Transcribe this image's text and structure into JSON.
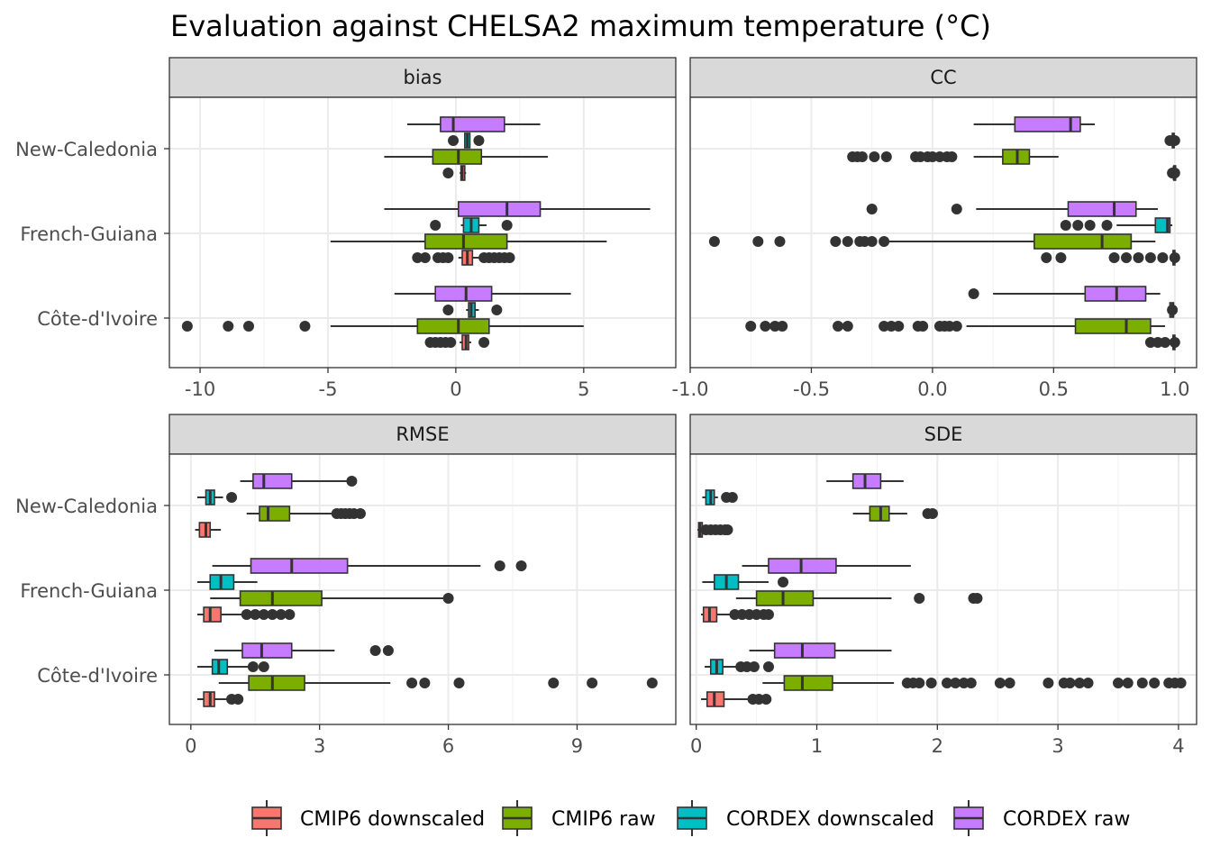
{
  "chart_data": {
    "type": "boxplot",
    "title": "Evaluation against CHELSA2 maximum temperature (°C)",
    "legend": {
      "placement": "bottom",
      "entries": [
        {
          "key": "cmip6_downscaled",
          "label": "CMIP6 downscaled",
          "color": "#F8766D"
        },
        {
          "key": "cmip6_raw",
          "label": "CMIP6 raw",
          "color": "#7CAE00"
        },
        {
          "key": "cordex_downscaled",
          "label": "CORDEX downscaled",
          "color": "#00BFC4"
        },
        {
          "key": "cordex_raw",
          "label": "CORDEX raw",
          "color": "#C77CFF"
        }
      ]
    },
    "regions": [
      "New-Caledonia",
      "French-Guiana",
      "Côte-d'Ivoire"
    ],
    "facets": [
      {
        "name": "bias",
        "xlim": [
          -11.2,
          8.6
        ],
        "ticks": [
          -10,
          -5,
          0,
          5
        ],
        "tick_labels": [
          "-10",
          "-5",
          "0",
          "5"
        ],
        "boxes": [
          {
            "region": "New-Caledonia",
            "series": "cordex_raw",
            "wlo": -1.9,
            "q1": -0.6,
            "med": -0.1,
            "q3": 1.9,
            "whi": 3.3,
            "outliers": []
          },
          {
            "region": "New-Caledonia",
            "series": "cordex_downscaled",
            "wlo": 0.35,
            "q1": 0.35,
            "med": 0.45,
            "q3": 0.55,
            "whi": 0.55,
            "outliers": [
              -0.1,
              0.9
            ]
          },
          {
            "region": "New-Caledonia",
            "series": "cmip6_raw",
            "wlo": -2.8,
            "q1": -0.9,
            "med": 0.1,
            "q3": 1.0,
            "whi": 3.6,
            "outliers": []
          },
          {
            "region": "New-Caledonia",
            "series": "cmip6_downscaled",
            "wlo": 0.15,
            "q1": 0.2,
            "med": 0.25,
            "q3": 0.35,
            "whi": 0.4,
            "outliers": [
              -0.3
            ]
          },
          {
            "region": "French-Guiana",
            "series": "cordex_raw",
            "wlo": -2.8,
            "q1": 0.1,
            "med": 2.0,
            "q3": 3.3,
            "whi": 7.6,
            "outliers": []
          },
          {
            "region": "French-Guiana",
            "series": "cordex_downscaled",
            "wlo": 0.2,
            "q1": 0.3,
            "med": 0.6,
            "q3": 0.9,
            "whi": 1.2,
            "outliers": [
              -0.8,
              2.0
            ]
          },
          {
            "region": "French-Guiana",
            "series": "cmip6_raw",
            "wlo": -4.9,
            "q1": -1.2,
            "med": 0.3,
            "q3": 2.0,
            "whi": 5.9,
            "outliers": []
          },
          {
            "region": "French-Guiana",
            "series": "cmip6_downscaled",
            "wlo": 0.1,
            "q1": 0.25,
            "med": 0.45,
            "q3": 0.65,
            "whi": 1.0,
            "outliers": [
              -1.5,
              -1.2,
              -0.7,
              -0.5,
              -0.3,
              1.1,
              1.3,
              1.5,
              1.7,
              1.9,
              2.1
            ]
          },
          {
            "region": "Côte-d'Ivoire",
            "series": "cordex_raw",
            "wlo": -2.4,
            "q1": -0.8,
            "med": 0.4,
            "q3": 1.4,
            "whi": 4.5,
            "outliers": []
          },
          {
            "region": "Côte-d'Ivoire",
            "series": "cordex_downscaled",
            "wlo": 0.4,
            "q1": 0.5,
            "med": 0.6,
            "q3": 0.75,
            "whi": 0.9,
            "outliers": [
              -0.3,
              1.6
            ]
          },
          {
            "region": "Côte-d'Ivoire",
            "series": "cmip6_raw",
            "wlo": -4.9,
            "q1": -1.5,
            "med": 0.1,
            "q3": 1.3,
            "whi": 5.0,
            "outliers": [
              -10.5,
              -8.9,
              -8.1,
              -5.9
            ]
          },
          {
            "region": "Côte-d'Ivoire",
            "series": "cmip6_downscaled",
            "wlo": 0.15,
            "q1": 0.25,
            "med": 0.4,
            "q3": 0.5,
            "whi": 0.6,
            "outliers": [
              -1.0,
              -0.8,
              -0.6,
              -0.4,
              -0.2,
              1.1
            ]
          }
        ]
      },
      {
        "name": "CC",
        "xlim": [
          -1.0,
          1.09
        ],
        "ticks": [
          -1.0,
          -0.5,
          0.0,
          0.5,
          1.0
        ],
        "tick_labels": [
          "-1.0",
          "-0.5",
          "0.0",
          "0.5",
          "1.0"
        ],
        "boxes": [
          {
            "region": "New-Caledonia",
            "series": "cordex_raw",
            "wlo": 0.17,
            "q1": 0.34,
            "med": 0.57,
            "q3": 0.61,
            "whi": 0.67,
            "outliers": []
          },
          {
            "region": "New-Caledonia",
            "series": "cordex_downscaled",
            "wlo": 0.985,
            "q1": 0.99,
            "med": 0.993,
            "q3": 0.996,
            "whi": 0.998,
            "outliers": [
              0.98,
              1.0
            ]
          },
          {
            "region": "New-Caledonia",
            "series": "cmip6_raw",
            "wlo": 0.17,
            "q1": 0.29,
            "med": 0.35,
            "q3": 0.4,
            "whi": 0.52,
            "outliers": [
              -0.33,
              -0.31,
              -0.29,
              -0.24,
              -0.19,
              -0.07,
              -0.05,
              -0.02,
              0.0,
              0.03,
              0.06,
              0.08
            ]
          },
          {
            "region": "New-Caledonia",
            "series": "cmip6_downscaled",
            "wlo": 0.994,
            "q1": 0.996,
            "med": 0.997,
            "q3": 0.998,
            "whi": 0.999,
            "outliers": [
              0.99,
              1.0
            ]
          },
          {
            "region": "French-Guiana",
            "series": "cordex_raw",
            "wlo": 0.18,
            "q1": 0.56,
            "med": 0.75,
            "q3": 0.84,
            "whi": 0.93,
            "outliers": [
              -0.25,
              0.1
            ]
          },
          {
            "region": "French-Guiana",
            "series": "cordex_downscaled",
            "wlo": 0.76,
            "q1": 0.92,
            "med": 0.97,
            "q3": 0.98,
            "whi": 0.99,
            "outliers": [
              0.55,
              0.6,
              0.65,
              0.72
            ]
          },
          {
            "region": "French-Guiana",
            "series": "cmip6_raw",
            "wlo": -0.2,
            "q1": 0.42,
            "med": 0.7,
            "q3": 0.82,
            "whi": 0.92,
            "outliers": [
              -0.9,
              -0.72,
              -0.63,
              -0.4,
              -0.35,
              -0.3,
              -0.28,
              -0.25,
              -0.2
            ]
          },
          {
            "region": "French-Guiana",
            "series": "cmip6_downscaled",
            "wlo": 0.99,
            "q1": 0.993,
            "med": 0.996,
            "q3": 0.998,
            "whi": 0.999,
            "outliers": [
              0.47,
              0.53,
              0.75,
              0.8,
              0.85,
              0.9,
              0.95,
              1.0
            ]
          },
          {
            "region": "Côte-d'Ivoire",
            "series": "cordex_raw",
            "wlo": 0.25,
            "q1": 0.63,
            "med": 0.76,
            "q3": 0.88,
            "whi": 0.94,
            "outliers": [
              0.17
            ]
          },
          {
            "region": "Côte-d'Ivoire",
            "series": "cordex_downscaled",
            "wlo": 0.97,
            "q1": 0.98,
            "med": 0.99,
            "q3": 0.995,
            "whi": 1.0,
            "outliers": [
              0.99
            ]
          },
          {
            "region": "Côte-d'Ivoire",
            "series": "cmip6_raw",
            "wlo": 0.14,
            "q1": 0.59,
            "med": 0.8,
            "q3": 0.9,
            "whi": 0.96,
            "outliers": [
              -0.75,
              -0.69,
              -0.65,
              -0.62,
              -0.39,
              -0.35,
              -0.2,
              -0.17,
              -0.14,
              -0.06,
              -0.04,
              0.03,
              0.05,
              0.07,
              0.1
            ]
          },
          {
            "region": "Côte-d'Ivoire",
            "series": "cmip6_downscaled",
            "wlo": 0.99,
            "q1": 0.993,
            "med": 0.996,
            "q3": 0.998,
            "whi": 0.999,
            "outliers": [
              0.9,
              0.93,
              0.96,
              1.0
            ]
          }
        ]
      },
      {
        "name": "RMSE",
        "xlim": [
          -0.5,
          11.3
        ],
        "ticks": [
          0,
          3,
          6,
          9
        ],
        "tick_labels": [
          "0",
          "3",
          "6",
          "9"
        ],
        "boxes": [
          {
            "region": "New-Caledonia",
            "series": "cordex_raw",
            "wlo": 1.15,
            "q1": 1.45,
            "med": 1.7,
            "q3": 2.35,
            "whi": 3.7,
            "outliers": [
              3.75
            ]
          },
          {
            "region": "New-Caledonia",
            "series": "cordex_downscaled",
            "wlo": 0.15,
            "q1": 0.35,
            "med": 0.45,
            "q3": 0.55,
            "whi": 0.75,
            "outliers": [
              0.95
            ]
          },
          {
            "region": "New-Caledonia",
            "series": "cmip6_raw",
            "wlo": 1.3,
            "q1": 1.6,
            "med": 1.8,
            "q3": 2.3,
            "whi": 3.3,
            "outliers": [
              3.4,
              3.5,
              3.6,
              3.7,
              3.8,
              3.95
            ]
          },
          {
            "region": "New-Caledonia",
            "series": "cmip6_downscaled",
            "wlo": 0.1,
            "q1": 0.2,
            "med": 0.35,
            "q3": 0.45,
            "whi": 0.7,
            "outliers": []
          },
          {
            "region": "French-Guiana",
            "series": "cordex_raw",
            "wlo": 0.5,
            "q1": 1.4,
            "med": 2.35,
            "q3": 3.65,
            "whi": 6.75,
            "outliers": [
              7.2,
              7.7
            ]
          },
          {
            "region": "French-Guiana",
            "series": "cordex_downscaled",
            "wlo": 0.15,
            "q1": 0.45,
            "med": 0.7,
            "q3": 1.0,
            "whi": 1.55,
            "outliers": []
          },
          {
            "region": "French-Guiana",
            "series": "cmip6_raw",
            "wlo": 0.45,
            "q1": 1.15,
            "med": 1.9,
            "q3": 3.05,
            "whi": 5.9,
            "outliers": [
              6.0
            ]
          },
          {
            "region": "French-Guiana",
            "series": "cmip6_downscaled",
            "wlo": 0.15,
            "q1": 0.3,
            "med": 0.45,
            "q3": 0.7,
            "whi": 1.2,
            "outliers": [
              1.3,
              1.5,
              1.7,
              1.9,
              2.1,
              2.3
            ]
          },
          {
            "region": "Côte-d'Ivoire",
            "series": "cordex_raw",
            "wlo": 0.55,
            "q1": 1.2,
            "med": 1.65,
            "q3": 2.35,
            "whi": 3.35,
            "outliers": [
              4.3,
              4.6
            ]
          },
          {
            "region": "Côte-d'Ivoire",
            "series": "cordex_downscaled",
            "wlo": 0.15,
            "q1": 0.5,
            "med": 0.65,
            "q3": 0.85,
            "whi": 1.35,
            "outliers": [
              1.45,
              1.7
            ]
          },
          {
            "region": "Côte-d'Ivoire",
            "series": "cmip6_raw",
            "wlo": 0.65,
            "q1": 1.35,
            "med": 1.9,
            "q3": 2.65,
            "whi": 4.65,
            "outliers": [
              5.15,
              5.45,
              6.25,
              8.45,
              9.35,
              10.75
            ]
          },
          {
            "region": "Côte-d'Ivoire",
            "series": "cmip6_downscaled",
            "wlo": 0.15,
            "q1": 0.3,
            "med": 0.45,
            "q3": 0.55,
            "whi": 0.9,
            "outliers": [
              0.95,
              1.1
            ]
          }
        ]
      },
      {
        "name": "SDE",
        "xlim": [
          -0.05,
          4.15
        ],
        "ticks": [
          0,
          1,
          2,
          3,
          4
        ],
        "tick_labels": [
          "0",
          "1",
          "2",
          "3",
          "4"
        ],
        "boxes": [
          {
            "region": "New-Caledonia",
            "series": "cordex_raw",
            "wlo": 1.08,
            "q1": 1.3,
            "med": 1.4,
            "q3": 1.53,
            "whi": 1.72,
            "outliers": []
          },
          {
            "region": "New-Caledonia",
            "series": "cordex_downscaled",
            "wlo": 0.05,
            "q1": 0.08,
            "med": 0.12,
            "q3": 0.15,
            "whi": 0.18,
            "outliers": [
              0.25,
              0.3
            ]
          },
          {
            "region": "New-Caledonia",
            "series": "cmip6_raw",
            "wlo": 1.3,
            "q1": 1.44,
            "med": 1.53,
            "q3": 1.6,
            "whi": 1.75,
            "outliers": [
              1.92,
              1.96
            ]
          },
          {
            "region": "New-Caledonia",
            "series": "cmip6_downscaled",
            "wlo": 0.01,
            "q1": 0.02,
            "med": 0.03,
            "q3": 0.05,
            "whi": 0.06,
            "outliers": [
              0.08,
              0.12,
              0.16,
              0.2,
              0.24,
              0.26
            ]
          },
          {
            "region": "French-Guiana",
            "series": "cordex_raw",
            "wlo": 0.38,
            "q1": 0.6,
            "med": 0.87,
            "q3": 1.16,
            "whi": 1.78,
            "outliers": []
          },
          {
            "region": "French-Guiana",
            "series": "cordex_downscaled",
            "wlo": 0.05,
            "q1": 0.15,
            "med": 0.25,
            "q3": 0.35,
            "whi": 0.6,
            "outliers": [
              0.72
            ]
          },
          {
            "region": "French-Guiana",
            "series": "cmip6_raw",
            "wlo": 0.33,
            "q1": 0.5,
            "med": 0.72,
            "q3": 0.97,
            "whi": 1.62,
            "outliers": [
              1.85,
              2.3,
              2.33
            ]
          },
          {
            "region": "French-Guiana",
            "series": "cmip6_downscaled",
            "wlo": 0.04,
            "q1": 0.06,
            "med": 0.11,
            "q3": 0.17,
            "whi": 0.28,
            "outliers": [
              0.32,
              0.38,
              0.44,
              0.5,
              0.56,
              0.6
            ]
          },
          {
            "region": "Côte-d'Ivoire",
            "series": "cordex_raw",
            "wlo": 0.44,
            "q1": 0.65,
            "med": 0.88,
            "q3": 1.15,
            "whi": 1.62,
            "outliers": []
          },
          {
            "region": "Côte-d'Ivoire",
            "series": "cordex_downscaled",
            "wlo": 0.07,
            "q1": 0.12,
            "med": 0.17,
            "q3": 0.22,
            "whi": 0.33,
            "outliers": [
              0.37,
              0.42,
              0.48,
              0.6
            ]
          },
          {
            "region": "Côte-d'Ivoire",
            "series": "cmip6_raw",
            "wlo": 0.55,
            "q1": 0.73,
            "med": 0.88,
            "q3": 1.13,
            "whi": 1.64,
            "outliers": [
              1.75,
              1.8,
              1.85,
              1.95,
              2.08,
              2.15,
              2.22,
              2.28,
              2.52,
              2.6,
              2.92,
              3.05,
              3.1,
              3.18,
              3.25,
              3.5,
              3.58,
              3.7,
              3.8,
              3.92,
              3.97,
              4.02
            ]
          },
          {
            "region": "Côte-d'Ivoire",
            "series": "cmip6_downscaled",
            "wlo": 0.04,
            "q1": 0.09,
            "med": 0.15,
            "q3": 0.23,
            "whi": 0.43,
            "outliers": [
              0.47,
              0.52,
              0.58
            ]
          }
        ]
      }
    ]
  }
}
